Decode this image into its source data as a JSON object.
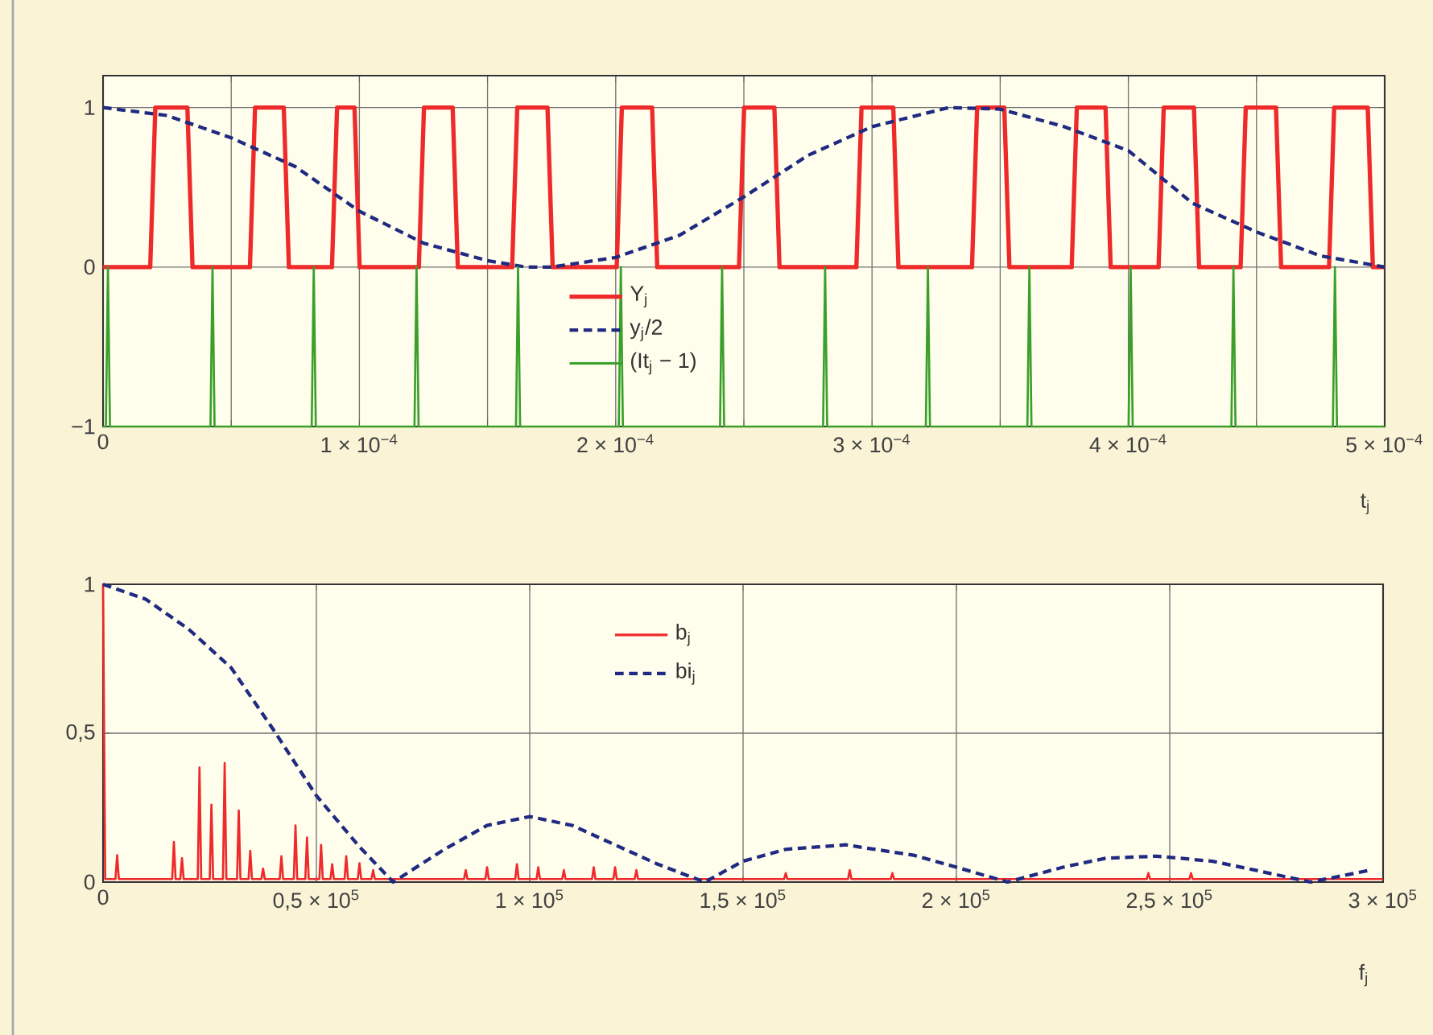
{
  "chart_data": [
    {
      "type": "line",
      "xlabel": "t$_{j}$",
      "xlim": [
        0,
        0.0005
      ],
      "ylim": [
        -1,
        1.2
      ],
      "grid": true,
      "legend": "bottom",
      "xticks": [
        0,
        {
          "value": 5e-05,
          "label": null
        },
        {
          "value": 0.0001,
          "label": "1 × 10$^{−4}$"
        },
        {
          "value": 0.00015,
          "label": null
        },
        {
          "value": 0.0002,
          "label": "2 × 10$^{−4}$"
        },
        {
          "value": 0.00025,
          "label": null
        },
        {
          "value": 0.0003,
          "label": "3 × 10$^{−4}$"
        },
        {
          "value": 0.00035,
          "label": null
        },
        {
          "value": 0.0004,
          "label": "4 × 10$^{−4}$"
        },
        {
          "value": 0.00045,
          "label": null
        },
        {
          "value": 0.0005,
          "label": "5 × 10$^{−4}$"
        }
      ],
      "yticks": [
        {
          "value": -1,
          "label": "−1"
        },
        0,
        1
      ],
      "series": [
        {
          "name": "Y$_{j}$",
          "color": "#ee2a2a",
          "line_style": "solid",
          "x": [
            0,
            1.84e-05,
            2.04e-05,
            3.29e-05,
            3.49e-05,
            5.73e-05,
            5.93e-05,
            7.05e-05,
            7.25e-05,
            8.93e-05,
            9.13e-05,
            9.81e-05,
            0.0001001,
            0.0001232,
            0.0001252,
            0.0001364,
            0.0001384,
            0.0001596,
            0.0001616,
            0.0001734,
            0.0001754,
            0.0002004,
            0.0002024,
            0.0002142,
            0.0002162,
            0.0002481,
            0.0002501,
            0.0002619,
            0.0002639,
            0.0002939,
            0.0002959,
            0.0003083,
            0.0003103,
            0.000339,
            0.000341,
            0.0003516,
            0.0003536,
            0.0003779,
            0.0003799,
            0.0003911,
            0.0003931,
            0.0004118,
            0.0004138,
            0.0004256,
            0.0004276,
            0.0004438,
            0.0004458,
            0.0004576,
            0.0004596,
            0.0004783,
            0.0004803,
            0.0004934,
            0.0004954,
            0.0005
          ],
          "values": [
            0,
            0,
            1,
            1,
            0,
            0,
            1,
            1,
            0,
            0,
            1,
            1,
            0,
            0,
            1,
            1,
            0,
            0,
            1,
            1,
            0,
            0,
            1,
            1,
            0,
            0,
            1,
            1,
            0,
            0,
            1,
            1,
            0,
            0,
            1,
            1,
            0,
            0,
            1,
            1,
            0,
            0,
            1,
            1,
            0,
            0,
            1,
            1,
            0,
            0,
            1,
            1,
            0,
            0
          ]
        },
        {
          "name": "y$_{j}$/2",
          "color": "#1f2a80",
          "line_style": "dashed",
          "x": [
            0,
            2.5e-05,
            5e-05,
            7.5e-05,
            0.0001,
            0.000125,
            0.00015,
            0.000165,
            0.000175,
            0.0002,
            0.000225,
            0.00025,
            0.000275,
            0.0003,
            0.00033,
            0.00035,
            0.000375,
            0.0004,
            0.000425,
            0.00045,
            0.000475,
            0.0005
          ],
          "values": [
            1,
            0.95,
            0.81,
            0.63,
            0.35,
            0.15,
            0.04,
            0,
            0,
            0.06,
            0.2,
            0.44,
            0.7,
            0.88,
            1.0,
            0.99,
            0.88,
            0.73,
            0.4,
            0.22,
            0.07,
            0
          ]
        },
        {
          "name": "(It$_{j}$ − 1)",
          "color": "#3aa02a",
          "line_style": "solid",
          "x": [
            0,
            1.1e-06,
            1.9e-06,
            2.7e-06,
            4.19e-05,
            4.27e-05,
            4.35e-05,
            8.14e-05,
            8.22e-05,
            8.3e-05,
            0.0001215,
            0.0001223,
            0.0001231,
            0.0001611,
            0.0001619,
            0.0001627,
            0.0002012,
            0.000202,
            0.0002028,
            0.0002407,
            0.0002415,
            0.0002423,
            0.0002809,
            0.0002817,
            0.0002825,
            0.000321,
            0.0003218,
            0.0003226,
            0.0003606,
            0.0003614,
            0.0003622,
            0.0004001,
            0.0004009,
            0.0004017,
            0.0004402,
            0.000441,
            0.0004418,
            0.0004798,
            0.0004806,
            0.0004814,
            0.0005
          ],
          "values": [
            -1,
            -1,
            0,
            -1,
            -1,
            0,
            -1,
            -1,
            0,
            -1,
            -1,
            0,
            -1,
            -1,
            0,
            -1,
            -1,
            0,
            -1,
            -1,
            0,
            -1,
            -1,
            0,
            -1,
            -1,
            0,
            -1,
            -1,
            0,
            -1,
            -1,
            0,
            -1,
            -1,
            0,
            -1,
            -1,
            0,
            -1,
            -1
          ]
        }
      ]
    },
    {
      "type": "line",
      "xlabel": "f$_{j}$",
      "xlim": [
        0,
        300000.0
      ],
      "ylim": [
        0,
        1
      ],
      "grid": true,
      "legend": "top",
      "xticks": [
        0,
        {
          "value": 50000.0,
          "label": "0,5 × 10$^{5}$"
        },
        {
          "value": 100000.0,
          "label": "1 × 10$^{5}$"
        },
        {
          "value": 150000.0,
          "label": "1,5 × 10$^{5}$"
        },
        {
          "value": 200000.0,
          "label": "2 × 10$^{5}$"
        },
        {
          "value": 250000.0,
          "label": "2,5 × 10$^{5}$"
        },
        {
          "value": 300000.0,
          "label": "3 × 10$^{5}$"
        }
      ],
      "yticks": [
        0,
        {
          "value": 0.5,
          "label": "0,5"
        },
        1
      ],
      "series": [
        {
          "name": "b$_{j}$",
          "color": "#ee2a2a",
          "line_style": "solid",
          "x": [
            0,
            500.0,
            2900.0,
            3300.0,
            3700.0,
            16200.0,
            16600.0,
            17000.0,
            18100.0,
            18500.0,
            18900.0,
            22200.0,
            22600.0,
            23000.0,
            25000.0,
            25400.0,
            25800.0,
            28100.0,
            28500.0,
            28900.0,
            31400.0,
            31800.0,
            32200.0,
            34100.0,
            34500.0,
            34900.0,
            37100.0,
            37500.0,
            37900.0,
            41400.0,
            41800.0,
            42200.0,
            44700.0,
            45100.0,
            45500.0,
            47400.0,
            47800.0,
            48200.0,
            50700.0,
            51100.0,
            51500.0,
            53300.0,
            53700.0,
            54100.0,
            56600.0,
            57000.0,
            57400.0,
            59700.0,
            60100.0,
            60500.0,
            62900.0,
            63300.0,
            63700.0,
            84600.0,
            85000.0,
            85400.0,
            89600.0,
            90000.0,
            90400.0,
            96600.0,
            97000.0,
            97400.0,
            101600.0,
            102000.0,
            102400.0,
            107600.0,
            108000.0,
            108400.0,
            114600.0,
            115000.0,
            115400.0,
            119600.0,
            120000.0,
            120400.0,
            124600.0,
            125000.0,
            125400.0,
            159600.0,
            160000.0,
            160400.0,
            174600.0,
            175000.0,
            175400.0,
            184600.0,
            185000.0,
            185400.0,
            244600.0,
            245000.0,
            245400.0,
            254600.0,
            255000.0,
            255400.0,
            300000.0
          ],
          "values": [
            1,
            0.01,
            0.01,
            0.09,
            0.01,
            0.01,
            0.135,
            0.01,
            0.01,
            0.08,
            0.01,
            0.01,
            0.385,
            0.01,
            0.01,
            0.26,
            0.01,
            0.01,
            0.4,
            0.01,
            0.01,
            0.24,
            0.01,
            0.01,
            0.105,
            0.01,
            0.01,
            0.045,
            0.01,
            0.01,
            0.087,
            0.01,
            0.01,
            0.19,
            0.01,
            0.01,
            0.15,
            0.01,
            0.01,
            0.125,
            0.01,
            0.01,
            0.06,
            0.01,
            0.01,
            0.087,
            0.01,
            0.01,
            0.063,
            0.01,
            0.01,
            0.04,
            0.01,
            0.01,
            0.04,
            0.01,
            0.01,
            0.05,
            0.01,
            0.01,
            0.06,
            0.01,
            0.01,
            0.05,
            0.01,
            0.01,
            0.04,
            0.01,
            0.01,
            0.05,
            0.01,
            0.01,
            0.05,
            0.01,
            0.01,
            0.04,
            0.01,
            0.01,
            0.03,
            0.01,
            0.01,
            0.04,
            0.01,
            0.01,
            0.03,
            0.01,
            0.01,
            0.03,
            0.01,
            0.01,
            0.03,
            0.01,
            0.01
          ]
        },
        {
          "name": "bi$_{j}$",
          "color": "#1f2a80",
          "line_style": "dashed",
          "x": [
            0,
            10000.0,
            20000.0,
            30000.0,
            40000.0,
            50000.0,
            60000.0,
            68000.0,
            80000.0,
            90000.0,
            100000.0,
            110000.0,
            120000.0,
            130000.0,
            141000.0,
            150000.0,
            160000.0,
            174000.0,
            190000.0,
            200000.0,
            212000.0,
            225000.0,
            235000.0,
            247000.0,
            260000.0,
            270000.0,
            283000.0,
            297000.0
          ],
          "values": [
            1,
            0.95,
            0.85,
            0.72,
            0.51,
            0.29,
            0.12,
            0,
            0.11,
            0.19,
            0.22,
            0.19,
            0.125,
            0.06,
            0,
            0.07,
            0.11,
            0.125,
            0.09,
            0.05,
            0,
            0.05,
            0.08,
            0.087,
            0.07,
            0.04,
            0,
            0.04
          ]
        }
      ]
    }
  ]
}
